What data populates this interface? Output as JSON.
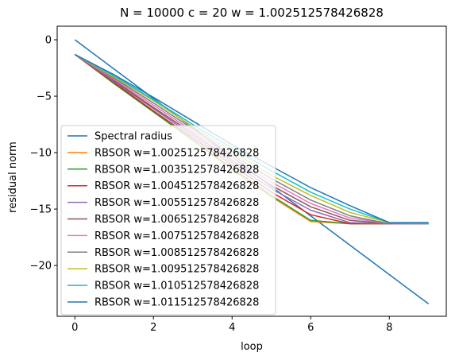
{
  "chart_data": {
    "type": "line",
    "title": "N = 10000 c = 20 w = 1.002512578426828",
    "xlabel": "loop",
    "ylabel": "residual norm",
    "xlim": [
      -0.45,
      9.45
    ],
    "ylim": [
      -24.5,
      1.2
    ],
    "xticks": [
      0,
      2,
      4,
      6,
      8
    ],
    "yticks": [
      0,
      -5,
      -10,
      -15,
      -20
    ],
    "grid": false,
    "legend_position": "lower-left",
    "x": [
      0,
      1,
      2,
      3,
      4,
      5,
      6,
      7,
      8,
      9
    ],
    "series": [
      {
        "name": "Spectral radius",
        "color": "#1f77b4",
        "values": [
          0.0,
          -2.6,
          -5.2,
          -7.8,
          -10.4,
          -13.0,
          -15.6,
          -18.2,
          -20.8,
          -23.4
        ]
      },
      {
        "name": "RBSOR w=1.002512578426828",
        "color": "#ff7f0e",
        "values": [
          -1.3,
          -3.9,
          -6.4,
          -8.9,
          -11.5,
          -13.9,
          -16.1,
          -16.3,
          -16.3,
          -16.3
        ]
      },
      {
        "name": "RBSOR w=1.003512578426828",
        "color": "#2ca02c",
        "values": [
          -1.3,
          -3.9,
          -6.4,
          -8.9,
          -11.4,
          -13.8,
          -16.0,
          -16.3,
          -16.3,
          -16.3
        ]
      },
      {
        "name": "RBSOR w=1.004512578426828",
        "color": "#d62728",
        "values": [
          -1.3,
          -3.8,
          -6.3,
          -8.7,
          -11.1,
          -13.5,
          -15.5,
          -16.3,
          -16.3,
          -16.3
        ]
      },
      {
        "name": "RBSOR w=1.005512578426828",
        "color": "#9467bd",
        "values": [
          -1.3,
          -3.7,
          -6.1,
          -8.5,
          -10.9,
          -13.2,
          -15.1,
          -16.2,
          -16.3,
          -16.3
        ]
      },
      {
        "name": "RBSOR w=1.006512578426828",
        "color": "#8c564b",
        "values": [
          -1.3,
          -3.6,
          -6.0,
          -8.3,
          -10.7,
          -12.9,
          -14.8,
          -16.0,
          -16.3,
          -16.3
        ]
      },
      {
        "name": "RBSOR w=1.007512578426828",
        "color": "#e377c2",
        "values": [
          -1.3,
          -3.5,
          -5.8,
          -8.1,
          -10.4,
          -12.6,
          -14.5,
          -15.8,
          -16.3,
          -16.3
        ]
      },
      {
        "name": "RBSOR w=1.008512578426828",
        "color": "#7f7f7f",
        "values": [
          -1.3,
          -3.4,
          -5.6,
          -7.9,
          -10.2,
          -12.3,
          -14.2,
          -15.6,
          -16.3,
          -16.3
        ]
      },
      {
        "name": "RBSOR w=1.009512578426828",
        "color": "#bcbd22",
        "values": [
          -1.3,
          -3.3,
          -5.4,
          -7.7,
          -9.9,
          -12.0,
          -13.8,
          -15.3,
          -16.2,
          -16.3
        ]
      },
      {
        "name": "RBSOR w=1.010512578426828",
        "color": "#17becf",
        "values": [
          -1.3,
          -3.2,
          -5.3,
          -7.5,
          -9.6,
          -11.6,
          -13.5,
          -15.0,
          -16.2,
          -16.3
        ]
      },
      {
        "name": "RBSOR w=1.011512578426828",
        "color": "#1f77b4",
        "values": [
          -1.3,
          -3.1,
          -5.1,
          -7.2,
          -9.3,
          -11.2,
          -13.1,
          -14.7,
          -16.2,
          -16.2
        ]
      }
    ]
  }
}
